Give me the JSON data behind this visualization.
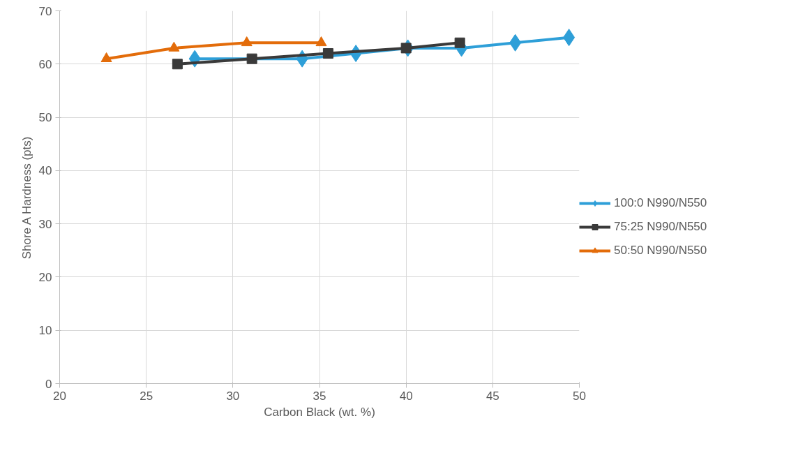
{
  "chart_data": {
    "type": "line",
    "xlabel": "Carbon Black (wt. %)",
    "ylabel": "Shore A Hardness (pts)",
    "xlim": [
      20,
      50
    ],
    "xticks": [
      20,
      25,
      30,
      35,
      40,
      45,
      50
    ],
    "ylim": [
      0,
      70
    ],
    "yticks": [
      0,
      10,
      20,
      30,
      40,
      50,
      60,
      70
    ],
    "grid": true,
    "legend": "right",
    "series": [
      {
        "name": "100:0 N990/N550",
        "color": "#2e9fd8",
        "marker": "diamond",
        "x": [
          27.8,
          34.0,
          37.1,
          40.1,
          43.2,
          46.3,
          49.4
        ],
        "values": [
          61,
          61,
          62,
          63,
          63,
          64,
          65
        ]
      },
      {
        "name": "75:25 N990/N550",
        "color": "#3a3a3a",
        "marker": "square",
        "x": [
          26.8,
          31.1,
          35.5,
          40.0,
          43.1
        ],
        "values": [
          60,
          61,
          62,
          63,
          64
        ]
      },
      {
        "name": "50:50 N990/N550",
        "color": "#e36c0a",
        "marker": "triangle",
        "x": [
          22.7,
          26.6,
          30.8,
          35.1
        ],
        "values": [
          61,
          63,
          64,
          64
        ]
      }
    ]
  }
}
